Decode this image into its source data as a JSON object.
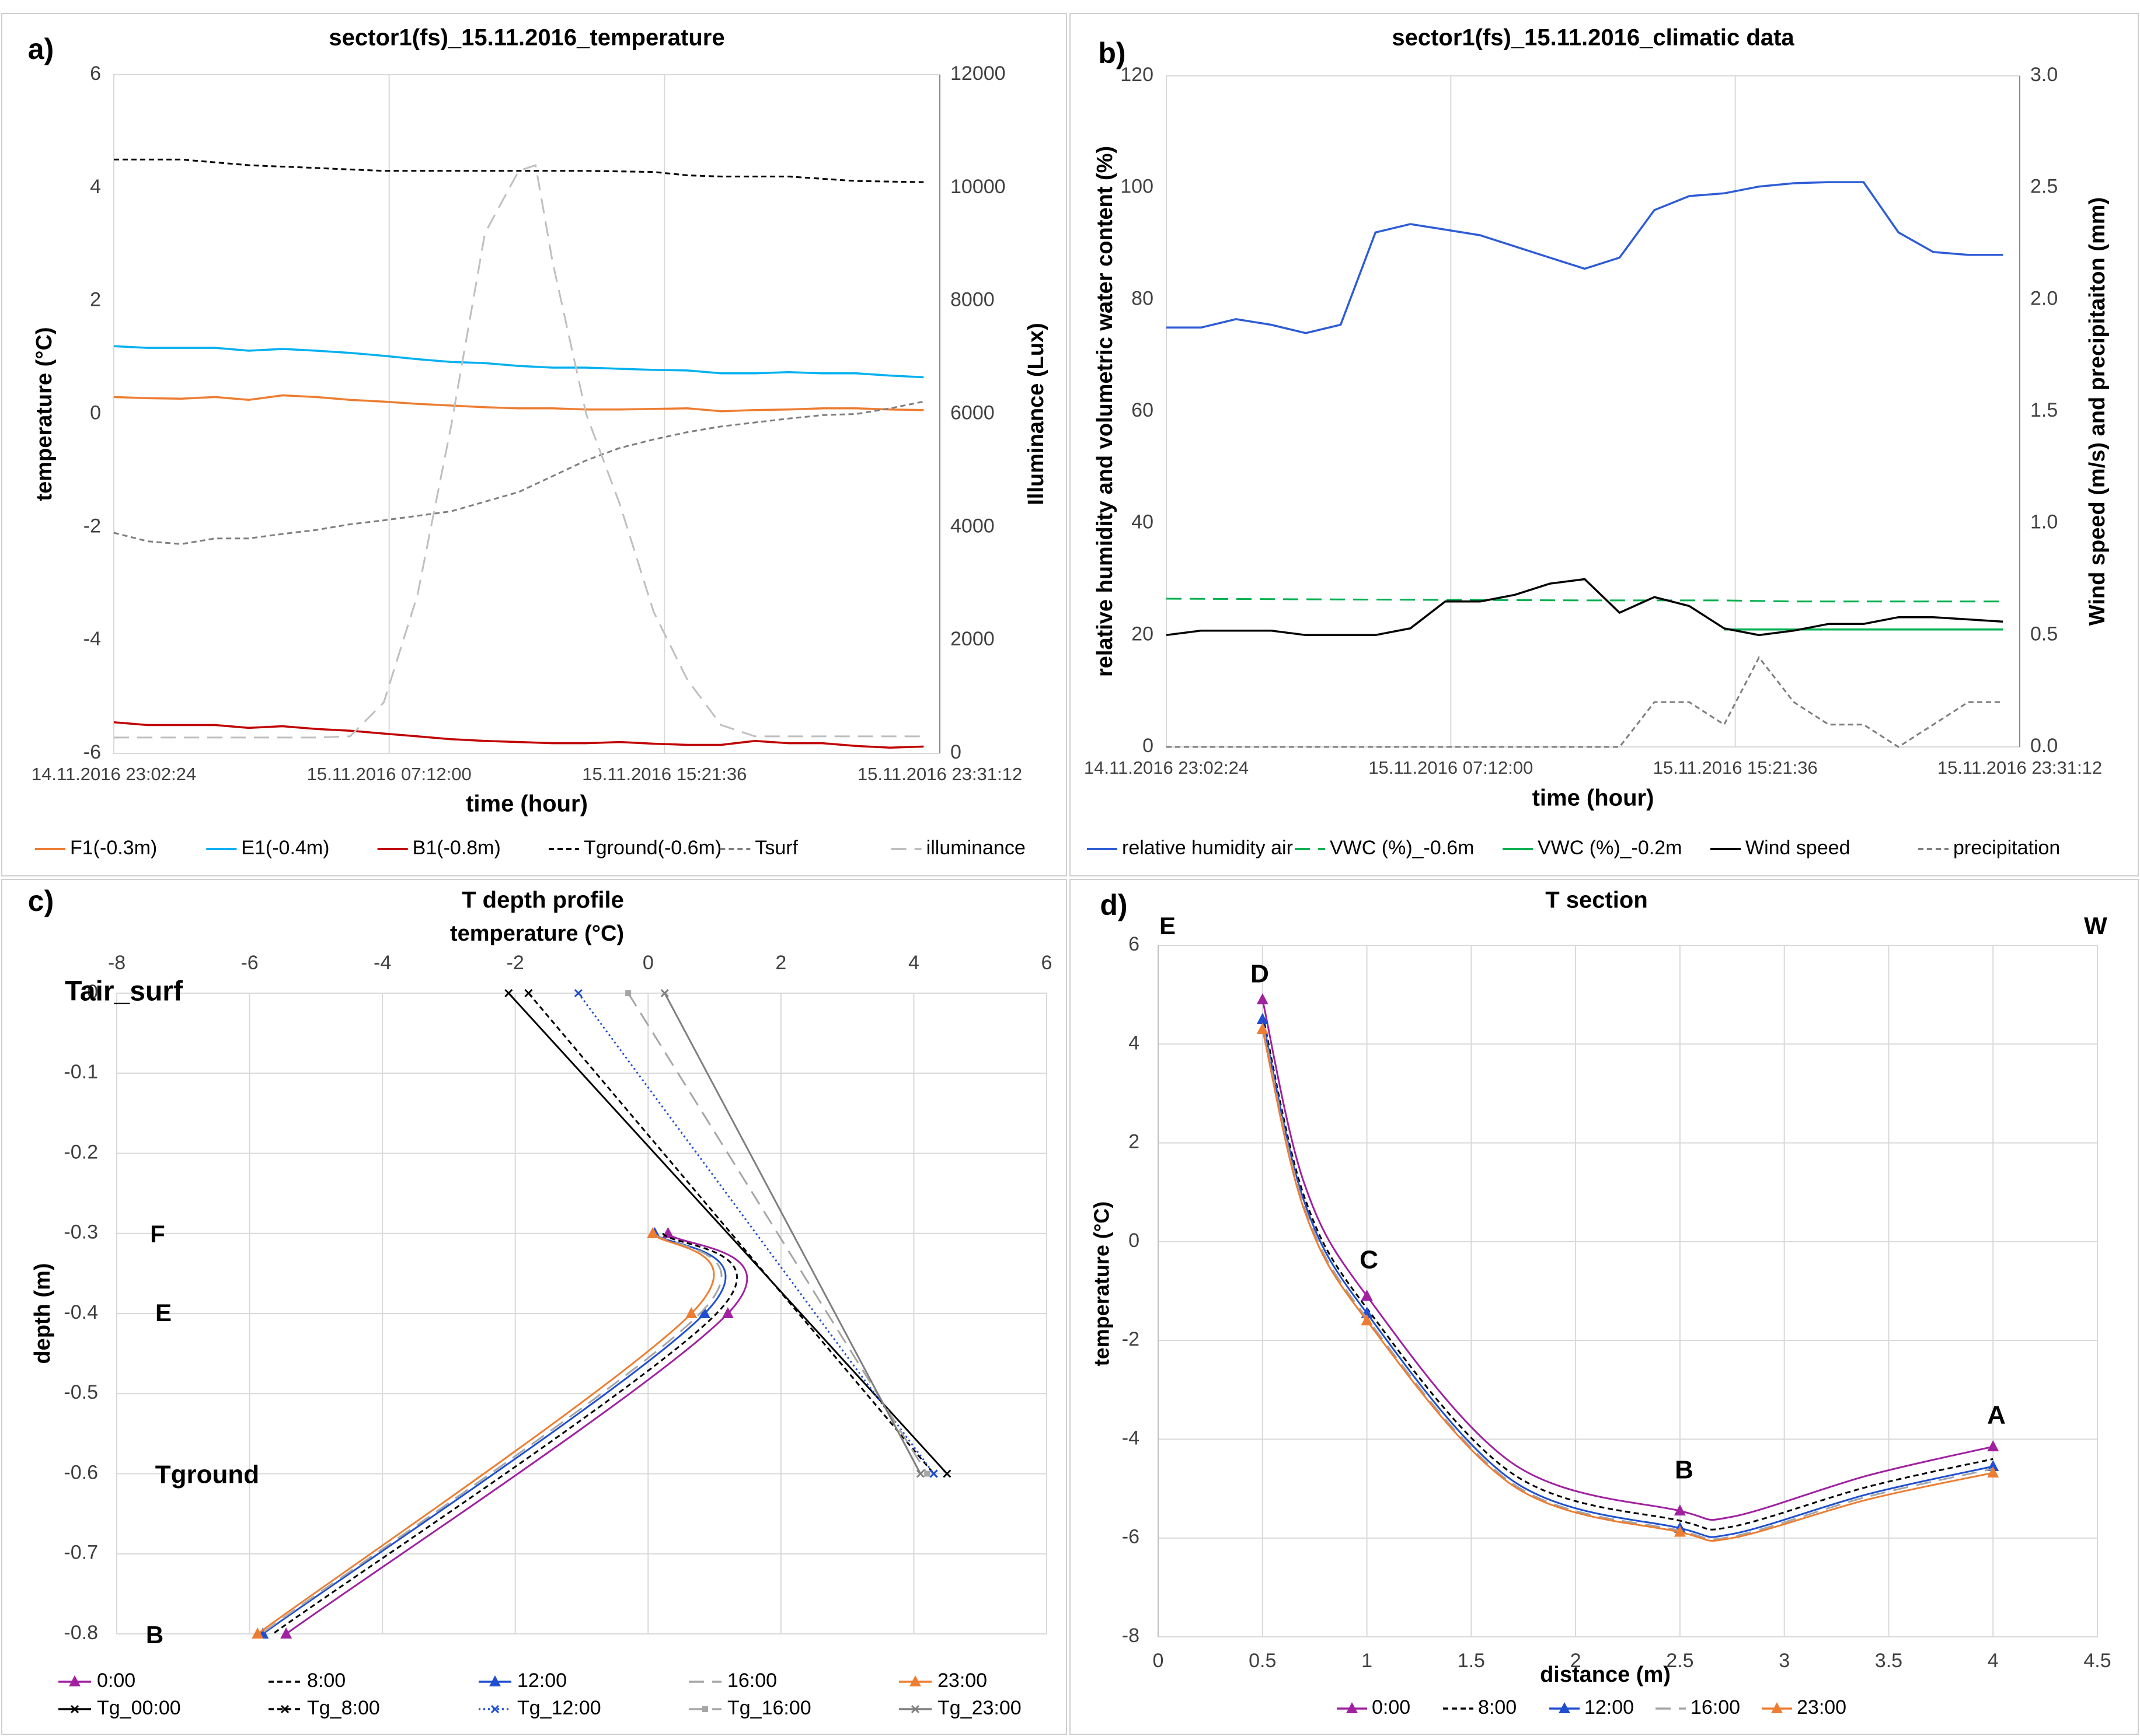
{
  "panels": [
    {
      "id": "a",
      "letter": "a)",
      "title": "sector1(fs)_15.11.2016_temperature",
      "xlabel": "time (hour)",
      "ylabel": "temperature (°C)",
      "y2label": "Illuminance (Lux)",
      "xticks": [
        "14.11.2016 23:02:24",
        "15.11.2016 07:12:00",
        "15.11.2016 15:21:36",
        "15.11.2016 23:31:12"
      ],
      "yticks": [
        "6",
        "4",
        "2",
        "0",
        "-2",
        "-4",
        "-6"
      ],
      "y2ticks": [
        "12000",
        "10000",
        "8000",
        "6000",
        "4000",
        "2000",
        "0"
      ],
      "legend": [
        "F1(-0.3m)",
        "E1(-0.4m)",
        "B1(-0.8m)",
        "Tground(-0.6m)",
        "Tsurf",
        "illuminance"
      ]
    },
    {
      "id": "b",
      "letter": "b)",
      "title": "sector1(fs)_15.11.2016_climatic data",
      "xlabel": "time (hour)",
      "ylabel": "relative humidity  and volumetric water content  (%)",
      "y2label": "Wind speed (m/s) and precipitaiton (mm)",
      "xticks": [
        "14.11.2016 23:02:24",
        "15.11.2016 07:12:00",
        "15.11.2016 15:21:36",
        "15.11.2016 23:31:12"
      ],
      "yticks": [
        "120",
        "100",
        "80",
        "60",
        "40",
        "20",
        "0"
      ],
      "y2ticks": [
        "3.0",
        "2.5",
        "2.0",
        "1.5",
        "1.0",
        "0.5",
        "0.0"
      ],
      "legend": [
        "relative humidity air",
        "VWC (%)_-0.6m",
        "VWC (%)_-0.2m",
        "Wind speed",
        "precipitation"
      ]
    },
    {
      "id": "c",
      "letter": "c)",
      "title": "T depth profile",
      "xlabel": "temperature (°C)",
      "ylabel": "depth (m)",
      "xticks": [
        "-8",
        "-6",
        "-4",
        "-2",
        "0",
        "2",
        "4",
        "6"
      ],
      "yticks": [
        "0",
        "-0.1",
        "-0.2",
        "-0.3",
        "-0.4",
        "-0.5",
        "-0.6",
        "-0.7",
        "-0.8"
      ],
      "point_labels": [
        "Tair_surf",
        "F",
        "E",
        "Tground",
        "B"
      ],
      "legend": [
        "0:00",
        "8:00",
        "12:00",
        "16:00",
        "23:00",
        "Tg_00:00",
        "Tg_8:00",
        "Tg_12:00",
        "Tg_16:00",
        "Tg_23:00"
      ]
    },
    {
      "id": "d",
      "letter": "d)",
      "title": "T section",
      "xlabel": "distance (m)",
      "ylabel": "temperature (°C)",
      "xticks": [
        "0",
        "0.5",
        "1",
        "1.5",
        "2",
        "2.5",
        "3",
        "3.5",
        "4",
        "4.5"
      ],
      "yticks": [
        "6",
        "4",
        "2",
        "0",
        "-2",
        "-4",
        "-6",
        "-8"
      ],
      "point_labels": [
        "D",
        "C",
        "B",
        "A"
      ],
      "corner_labels": [
        "E",
        "W"
      ],
      "legend": [
        "0:00",
        "8:00",
        "12:00",
        "16:00",
        "23:00"
      ]
    }
  ],
  "chart_data": [
    {
      "panel": "a",
      "type": "line",
      "title": "sector1(fs)_15.11.2016_temperature",
      "xlabel": "time (hour)",
      "ylabel": "temperature (°C)",
      "y2label": "Illuminance (Lux)",
      "x_unit": "hours after 14.11.2016 23:02:24",
      "ylim": [
        -6,
        6
      ],
      "y2lim": [
        0,
        12000
      ],
      "xlim": [
        0,
        24.48
      ],
      "grid": true,
      "legend_position": "bottom",
      "series": [
        {
          "name": "F1(-0.3m)",
          "color": "#ed7d31",
          "dash": "solid",
          "axis": "left",
          "x": [
            0,
            1,
            2,
            3,
            4,
            5,
            6,
            7,
            8,
            9,
            10,
            11,
            12,
            13,
            14,
            15,
            16,
            17,
            18,
            19,
            20,
            21,
            22,
            23,
            24
          ],
          "y": [
            0.3,
            0.28,
            0.27,
            0.3,
            0.25,
            0.33,
            0.3,
            0.25,
            0.22,
            0.18,
            0.15,
            0.12,
            0.1,
            0.1,
            0.08,
            0.08,
            0.09,
            0.1,
            0.05,
            0.07,
            0.08,
            0.1,
            0.1,
            0.08,
            0.07
          ]
        },
        {
          "name": "E1(-0.4m)",
          "color": "#00b0f0",
          "dash": "solid",
          "axis": "left",
          "x": [
            0,
            1,
            2,
            3,
            4,
            5,
            6,
            7,
            8,
            9,
            10,
            11,
            12,
            13,
            14,
            15,
            16,
            17,
            18,
            19,
            20,
            21,
            22,
            23,
            24
          ],
          "y": [
            1.2,
            1.17,
            1.17,
            1.17,
            1.12,
            1.15,
            1.12,
            1.08,
            1.03,
            0.97,
            0.92,
            0.9,
            0.85,
            0.82,
            0.82,
            0.8,
            0.78,
            0.77,
            0.72,
            0.72,
            0.74,
            0.72,
            0.72,
            0.68,
            0.65
          ]
        },
        {
          "name": "B1(-0.8m)",
          "color": "#c00000",
          "dash": "solid",
          "axis": "left",
          "x": [
            0,
            1,
            2,
            3,
            4,
            5,
            6,
            7,
            8,
            9,
            10,
            11,
            12,
            13,
            14,
            15,
            16,
            17,
            18,
            19,
            20,
            21,
            22,
            23,
            24
          ],
          "y": [
            -5.45,
            -5.5,
            -5.5,
            -5.5,
            -5.55,
            -5.52,
            -5.57,
            -5.6,
            -5.65,
            -5.7,
            -5.75,
            -5.78,
            -5.8,
            -5.82,
            -5.82,
            -5.8,
            -5.83,
            -5.85,
            -5.85,
            -5.78,
            -5.82,
            -5.82,
            -5.87,
            -5.9,
            -5.88
          ]
        },
        {
          "name": "Tground(-0.6m)",
          "color": "#000000",
          "dash": "short",
          "axis": "left",
          "x": [
            0,
            2,
            4,
            6,
            8,
            10,
            12,
            14,
            16,
            17,
            18,
            20,
            22,
            24
          ],
          "y": [
            4.5,
            4.5,
            4.4,
            4.35,
            4.3,
            4.3,
            4.3,
            4.3,
            4.28,
            4.22,
            4.2,
            4.2,
            4.12,
            4.1
          ]
        },
        {
          "name": "Tsurf",
          "color": "#7f7f7f",
          "dash": "short",
          "axis": "left",
          "x": [
            0,
            1,
            2,
            3,
            4,
            5,
            6,
            7,
            8,
            9,
            10,
            11,
            12,
            13,
            14,
            15,
            16,
            17,
            18,
            19,
            20,
            21,
            22,
            23,
            24
          ],
          "y": [
            -2.1,
            -2.25,
            -2.3,
            -2.2,
            -2.2,
            -2.12,
            -2.05,
            -1.95,
            -1.88,
            -1.8,
            -1.72,
            -1.55,
            -1.38,
            -1.1,
            -0.82,
            -0.6,
            -0.45,
            -0.32,
            -0.22,
            -0.15,
            -0.08,
            -0.02,
            0.0,
            0.1,
            0.22
          ]
        },
        {
          "name": "illuminance",
          "color": "#bfbfbf",
          "dash": "long",
          "axis": "right",
          "x": [
            0,
            1,
            2,
            3,
            4,
            5,
            6,
            7,
            8,
            9,
            10,
            11,
            12,
            12.5,
            13,
            14,
            15,
            16,
            17,
            18,
            19,
            20,
            21,
            22,
            23,
            24
          ],
          "y": [
            280,
            280,
            280,
            280,
            280,
            280,
            280,
            300,
            900,
            2800,
            5800,
            9200,
            10300,
            10400,
            8700,
            6000,
            4400,
            2500,
            1300,
            500,
            300,
            300,
            300,
            300,
            300,
            300
          ]
        }
      ]
    },
    {
      "panel": "b",
      "type": "line",
      "title": "sector1(fs)_15.11.2016_climatic data",
      "xlabel": "time (hour)",
      "ylabel": "relative humidity  and volumetric water content  (%)",
      "y2label": "Wind speed (m/s) and precipitaiton (mm)",
      "x_unit": "hours after 14.11.2016 23:02:24",
      "ylim": [
        0,
        120
      ],
      "y2lim": [
        0,
        3.0
      ],
      "xlim": [
        0,
        24.48
      ],
      "grid": true,
      "legend_position": "bottom",
      "series": [
        {
          "name": "relative humidity air",
          "color": "#2e5cd6",
          "dash": "solid",
          "axis": "left",
          "x": [
            0,
            1,
            2,
            3,
            4,
            5,
            6,
            7,
            8,
            9,
            10,
            11,
            12,
            13,
            14,
            15,
            16,
            17,
            18,
            19,
            20,
            21,
            22,
            23,
            24
          ],
          "y": [
            75,
            75,
            76.5,
            75.5,
            74,
            75.5,
            92,
            93.5,
            92.5,
            91.5,
            89.5,
            87.5,
            85.5,
            87.5,
            96,
            98.5,
            99,
            100.2,
            100.8,
            101,
            101,
            92,
            88.5,
            88,
            88
          ]
        },
        {
          "name": "VWC (%)_-0.6m",
          "color": "#00b050",
          "dash": "long",
          "axis": "left",
          "x": [
            0,
            4,
            8,
            12,
            16,
            18,
            20,
            22,
            24
          ],
          "y": [
            26.5,
            26.4,
            26.3,
            26.2,
            26.2,
            26.0,
            26.0,
            26.0,
            26.0
          ]
        },
        {
          "name": "VWC (%)_-0.2m",
          "color": "#00b050",
          "dash": "solid",
          "axis": "left",
          "x": [
            16,
            18,
            20,
            22,
            24
          ],
          "y": [
            21,
            21,
            21,
            21,
            21
          ]
        },
        {
          "name": "Wind speed",
          "color": "#000000",
          "dash": "solid",
          "axis": "right",
          "x": [
            0,
            1,
            2,
            3,
            4,
            5,
            6,
            7,
            8,
            9,
            10,
            11,
            12,
            13,
            14,
            15,
            16,
            17,
            18,
            19,
            20,
            21,
            22,
            23,
            24
          ],
          "y": [
            0.5,
            0.52,
            0.52,
            0.52,
            0.5,
            0.5,
            0.5,
            0.53,
            0.65,
            0.65,
            0.68,
            0.73,
            0.75,
            0.6,
            0.67,
            0.63,
            0.53,
            0.5,
            0.52,
            0.55,
            0.55,
            0.58,
            0.58,
            0.57,
            0.56
          ]
        },
        {
          "name": "precipitation",
          "color": "#7f7f7f",
          "dash": "short",
          "axis": "right",
          "x": [
            0,
            13,
            14,
            15,
            16,
            17,
            18,
            19,
            20,
            21,
            22,
            23,
            24
          ],
          "y": [
            0,
            0,
            0.2,
            0.2,
            0.1,
            0.4,
            0.2,
            0.1,
            0.1,
            0,
            0.1,
            0.2,
            0.2
          ]
        }
      ]
    },
    {
      "panel": "c",
      "type": "line",
      "title": "T depth profile",
      "xlabel": "temperature (°C)",
      "ylabel": "depth (m)",
      "xlim": [
        -8,
        6
      ],
      "ylim": [
        -0.8,
        0
      ],
      "grid": true,
      "legend_position": "bottom",
      "series": [
        {
          "name": "0:00",
          "color": "#a020a0",
          "dash": "solid",
          "marker": "triangle",
          "points": [
            [
              0.3,
              -0.3
            ],
            [
              1.2,
              -0.4
            ],
            [
              -5.45,
              -0.8
            ]
          ]
        },
        {
          "name": "8:00",
          "color": "#000000",
          "dash": "short",
          "marker": "none",
          "points": [
            [
              0.22,
              -0.3
            ],
            [
              1.03,
              -0.4
            ],
            [
              -5.65,
              -0.8
            ]
          ]
        },
        {
          "name": "12:00",
          "color": "#1f4fd0",
          "dash": "solid",
          "marker": "triangle",
          "points": [
            [
              0.1,
              -0.3
            ],
            [
              0.85,
              -0.4
            ],
            [
              -5.8,
              -0.8
            ]
          ]
        },
        {
          "name": "16:00",
          "color": "#a6a6a6",
          "dash": "long",
          "marker": "none",
          "points": [
            [
              0.09,
              -0.3
            ],
            [
              0.78,
              -0.4
            ],
            [
              -5.83,
              -0.8
            ]
          ]
        },
        {
          "name": "23:00",
          "color": "#ed7d31",
          "dash": "solid",
          "marker": "triangle",
          "points": [
            [
              0.07,
              -0.3
            ],
            [
              0.65,
              -0.4
            ],
            [
              -5.88,
              -0.8
            ]
          ]
        },
        {
          "name": "Tg_00:00",
          "color": "#000000",
          "dash": "solid",
          "marker": "x",
          "points": [
            [
              -2.1,
              0
            ],
            [
              4.5,
              -0.6
            ]
          ]
        },
        {
          "name": "Tg_8:00",
          "color": "#000000",
          "dash": "short",
          "marker": "x",
          "points": [
            [
              -1.8,
              0
            ],
            [
              4.3,
              -0.6
            ]
          ]
        },
        {
          "name": "Tg_12:00",
          "color": "#1f4fd0",
          "dash": "dot",
          "marker": "x",
          "points": [
            [
              -1.05,
              0
            ],
            [
              4.3,
              -0.6
            ]
          ]
        },
        {
          "name": "Tg_16:00",
          "color": "#a6a6a6",
          "dash": "long",
          "marker": "square",
          "points": [
            [
              -0.3,
              0
            ],
            [
              4.2,
              -0.6
            ]
          ]
        },
        {
          "name": "Tg_23:00",
          "color": "#7f7f7f",
          "dash": "solid",
          "marker": "x",
          "points": [
            [
              0.25,
              0
            ],
            [
              4.1,
              -0.6
            ]
          ]
        }
      ]
    },
    {
      "panel": "d",
      "type": "line",
      "title": "T section",
      "xlabel": "distance (m)",
      "ylabel": "temperature (°C)",
      "xlim": [
        0,
        4.5
      ],
      "ylim": [
        -8,
        6
      ],
      "grid": true,
      "legend_position": "bottom",
      "x": [
        0.5,
        1,
        2.5,
        4
      ],
      "series": [
        {
          "name": "0:00",
          "color": "#a020a0",
          "dash": "solid",
          "marker": "triangle",
          "values": [
            4.9,
            -1.1,
            -5.45,
            -4.15
          ]
        },
        {
          "name": "8:00",
          "color": "#000000",
          "dash": "short",
          "marker": "none",
          "values": [
            4.6,
            -1.35,
            -5.65,
            -4.4
          ]
        },
        {
          "name": "12:00",
          "color": "#1f4fd0",
          "dash": "solid",
          "marker": "triangle",
          "values": [
            4.5,
            -1.45,
            -5.8,
            -4.55
          ]
        },
        {
          "name": "16:00",
          "color": "#a6a6a6",
          "dash": "long",
          "marker": "none",
          "values": [
            4.4,
            -1.55,
            -5.85,
            -4.6
          ]
        },
        {
          "name": "23:00",
          "color": "#ed7d31",
          "dash": "solid",
          "marker": "triangle",
          "values": [
            4.3,
            -1.6,
            -5.88,
            -4.68
          ]
        }
      ]
    }
  ]
}
